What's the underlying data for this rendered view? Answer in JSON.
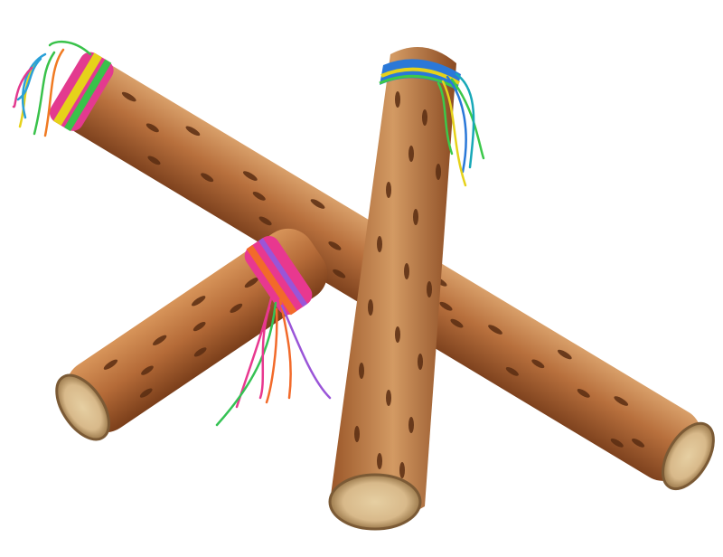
{
  "scene": {
    "background": "#ffffff",
    "objects": [
      {
        "name": "long-rainstick",
        "wood": "#b8703d",
        "yarn_colors": [
          "#e6d21a",
          "#2aa0d8",
          "#39c24a",
          "#e33a8f",
          "#f07a22"
        ]
      },
      {
        "name": "upright-rainstick",
        "wood": "#c07c47",
        "yarn_colors": [
          "#2a78d8",
          "#3cc84a",
          "#e6d21a",
          "#18a8b8"
        ]
      },
      {
        "name": "short-rainstick",
        "wood": "#b56b38",
        "yarn_colors": [
          "#e8388f",
          "#f26a2a",
          "#9a55d8",
          "#35c254"
        ]
      }
    ],
    "colors": {
      "wood_light": "#d9a06a",
      "wood_dark": "#8a4a22",
      "pit": "#5a2d12",
      "end_grain": "#d8b98a",
      "end_grain_ring": "#9c7a4c"
    }
  }
}
